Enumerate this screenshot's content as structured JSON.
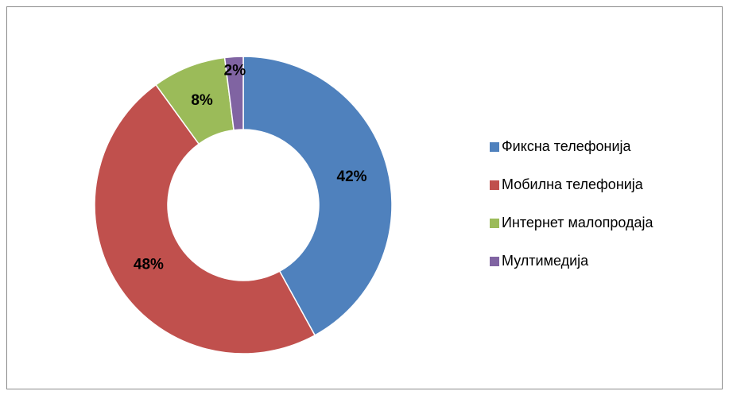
{
  "chart_data": {
    "type": "donut",
    "categories": [
      "Фиксна телефонија",
      "Мобилна телефонија",
      "Интернет малопродаја",
      "Мултимедија"
    ],
    "values": [
      42,
      48,
      8,
      2
    ],
    "value_labels": [
      "42%",
      "48%",
      "8%",
      "2%"
    ],
    "colors": [
      "#4f81bd",
      "#c0504d",
      "#9bbb59",
      "#8064a2"
    ],
    "legend": "right"
  }
}
